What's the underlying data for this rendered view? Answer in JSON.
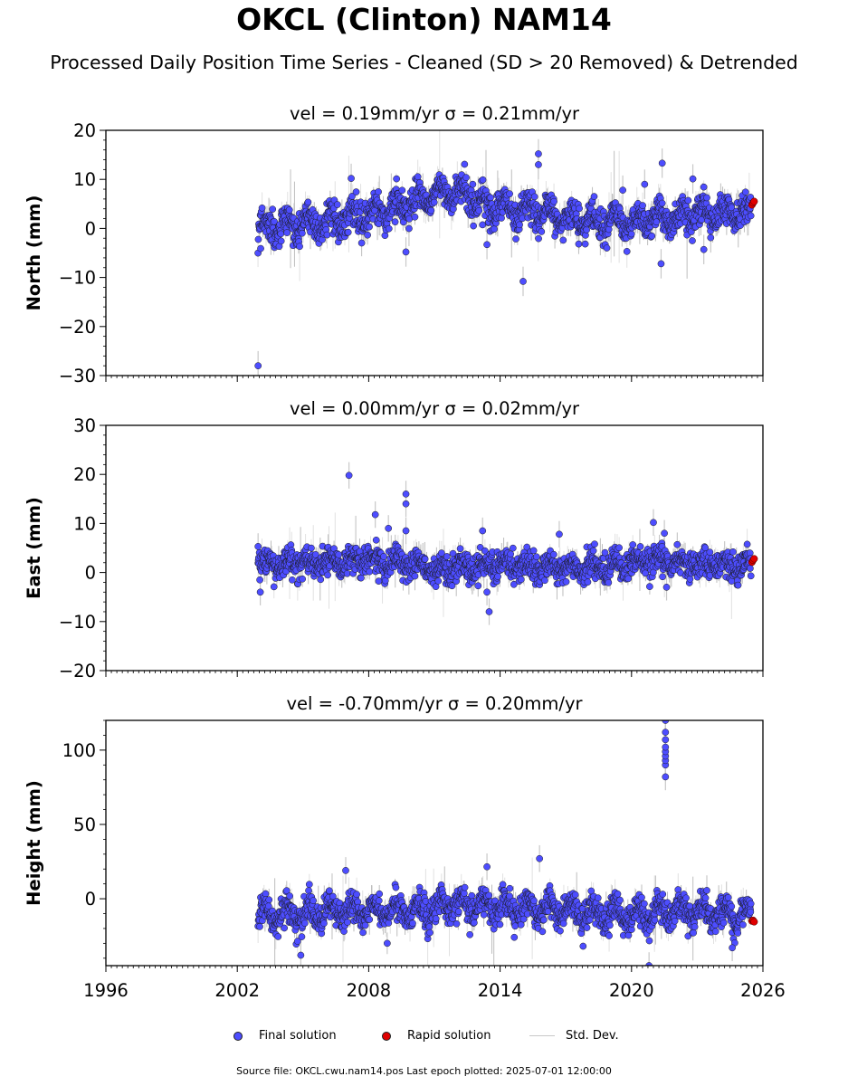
{
  "figure": {
    "title": "OKCL (Clinton) NAM14",
    "subtitle": "Processed Daily Position Time Series - Cleaned (SD > 20 Removed) & Detrended",
    "footer": "Source file: OKCL.cwu.nam14.pos  Last epoch plotted: 2025-07-01 12:00:00"
  },
  "legend": {
    "final": "Final solution",
    "rapid": "Rapid solution",
    "std": "Std. Dev."
  },
  "colors": {
    "final_fill": "#4d4dff",
    "final_edge": "#1a1a1a",
    "rapid_fill": "#e00000",
    "stddev": "#c8c8c8"
  },
  "chart_data": [
    {
      "type": "scatter",
      "panel": "north",
      "title": "vel = 0.19mm/yr   σ = 0.21mm/yr",
      "ylabel": "North (mm)",
      "xlim": [
        1996,
        2026
      ],
      "ylim": [
        -30,
        20
      ],
      "yticks": [
        -30,
        -20,
        -10,
        0,
        10,
        20
      ],
      "ytick_labels": [
        "−30",
        "−20",
        "−10",
        "0",
        "10",
        "20"
      ],
      "grid": false,
      "trend": {
        "x": [
          2002.95,
          2004,
          2005,
          2006,
          2007,
          2008,
          2009,
          2010,
          2011,
          2012,
          2013,
          2014,
          2015,
          2016,
          2017,
          2018,
          2019,
          2020,
          2021,
          2022,
          2023,
          2024,
          2025.45
        ],
        "y": [
          0,
          0.5,
          1,
          1.5,
          2,
          3,
          4,
          5,
          7,
          7.5,
          5.5,
          4,
          4,
          3,
          2,
          1.5,
          1.5,
          1.5,
          2,
          2.5,
          3,
          3,
          3
        ]
      },
      "noise": 2.0,
      "amp": 1.8,
      "outliers": [
        {
          "x": 2002.95,
          "y": -28
        },
        {
          "x": 2007.2,
          "y": 10.2
        },
        {
          "x": 2009.7,
          "y": -4.8
        },
        {
          "x": 2013.4,
          "y": -3.3
        },
        {
          "x": 2015.05,
          "y": -10.8
        },
        {
          "x": 2015.75,
          "y": 15.2
        },
        {
          "x": 2015.75,
          "y": 13
        },
        {
          "x": 2019.6,
          "y": 7.8
        },
        {
          "x": 2020.6,
          "y": 9
        },
        {
          "x": 2021.35,
          "y": -7.2
        },
        {
          "x": 2021.4,
          "y": 13.3
        },
        {
          "x": 2022.8,
          "y": 10.1
        },
        {
          "x": 2023.3,
          "y": -4.3
        }
      ],
      "rapid": {
        "x": [
          2025.5,
          2025.55,
          2025.6
        ],
        "y": [
          4.8,
          5.2,
          5.5
        ]
      }
    },
    {
      "type": "scatter",
      "panel": "east",
      "title": "vel = 0.00mm/yr   σ = 0.02mm/yr",
      "ylabel": "East (mm)",
      "xlim": [
        1996,
        2026
      ],
      "ylim": [
        -20,
        30
      ],
      "yticks": [
        -20,
        -10,
        0,
        10,
        20,
        30
      ],
      "ytick_labels": [
        "−20",
        "−10",
        "0",
        "10",
        "20",
        "30"
      ],
      "grid": false,
      "trend": {
        "x": [
          2002.95,
          2005,
          2008,
          2010,
          2011,
          2013,
          2015,
          2017,
          2019,
          2021,
          2023,
          2025.45
        ],
        "y": [
          1.5,
          2,
          2.5,
          1.5,
          0.5,
          1.5,
          1.5,
          1,
          1,
          2.5,
          1.5,
          1.5
        ]
      },
      "noise": 1.8,
      "amp": 1.0,
      "outliers": [
        {
          "x": 2002.95,
          "y": 5.3
        },
        {
          "x": 2003.05,
          "y": -4
        },
        {
          "x": 2007.1,
          "y": 19.8
        },
        {
          "x": 2008.3,
          "y": 11.8
        },
        {
          "x": 2008.9,
          "y": 9
        },
        {
          "x": 2009.7,
          "y": 16
        },
        {
          "x": 2009.7,
          "y": 14
        },
        {
          "x": 2009.7,
          "y": 8.5
        },
        {
          "x": 2013.2,
          "y": 8.5
        },
        {
          "x": 2013.5,
          "y": -8
        },
        {
          "x": 2013.4,
          "y": -4
        },
        {
          "x": 2021.0,
          "y": 10.2
        },
        {
          "x": 2021.5,
          "y": 8
        },
        {
          "x": 2021.6,
          "y": -3
        },
        {
          "x": 2016.7,
          "y": 7.8
        }
      ],
      "rapid": {
        "x": [
          2025.5,
          2025.55,
          2025.6
        ],
        "y": [
          2.1,
          2.5,
          2.8
        ]
      }
    },
    {
      "type": "scatter",
      "panel": "height",
      "title": "vel = -0.70mm/yr   σ = 0.20mm/yr",
      "ylabel": "Height (mm)",
      "xlim": [
        1996,
        2026
      ],
      "ylim": [
        -45,
        120
      ],
      "yticks": [
        0,
        50,
        100
      ],
      "ytick_labels": [
        "0",
        "50",
        "100"
      ],
      "grid": false,
      "trend": {
        "x": [
          2002.95,
          2005,
          2008,
          2010,
          2012,
          2014,
          2016,
          2018,
          2020,
          2022,
          2024,
          2025.45
        ],
        "y": [
          -12,
          -10,
          -9,
          -8,
          -4,
          -5,
          -7,
          -9,
          -11,
          -9,
          -10,
          -10
        ]
      },
      "noise": 6.0,
      "amp": 6.0,
      "outliers": [
        {
          "x": 2021.55,
          "y": 82
        },
        {
          "x": 2021.55,
          "y": 90
        },
        {
          "x": 2021.55,
          "y": 93
        },
        {
          "x": 2021.55,
          "y": 96
        },
        {
          "x": 2021.55,
          "y": 99
        },
        {
          "x": 2021.55,
          "y": 102
        },
        {
          "x": 2021.55,
          "y": 107
        },
        {
          "x": 2021.55,
          "y": 112
        },
        {
          "x": 2021.55,
          "y": 120
        },
        {
          "x": 2004.9,
          "y": -38
        },
        {
          "x": 2013.4,
          "y": 21.5
        },
        {
          "x": 2015.8,
          "y": 27
        },
        {
          "x": 2006.95,
          "y": 19
        },
        {
          "x": 2020.8,
          "y": -45
        },
        {
          "x": 2024.6,
          "y": -33
        }
      ],
      "rapid": {
        "x": [
          2025.5,
          2025.55,
          2025.6
        ],
        "y": [
          -15,
          -14.5,
          -15.5
        ]
      }
    }
  ],
  "x_axis": {
    "ticks": [
      1996,
      2002,
      2008,
      2014,
      2020,
      2026
    ],
    "tick_labels": [
      "1996",
      "2002",
      "2008",
      "2014",
      "2020",
      "2026"
    ]
  }
}
